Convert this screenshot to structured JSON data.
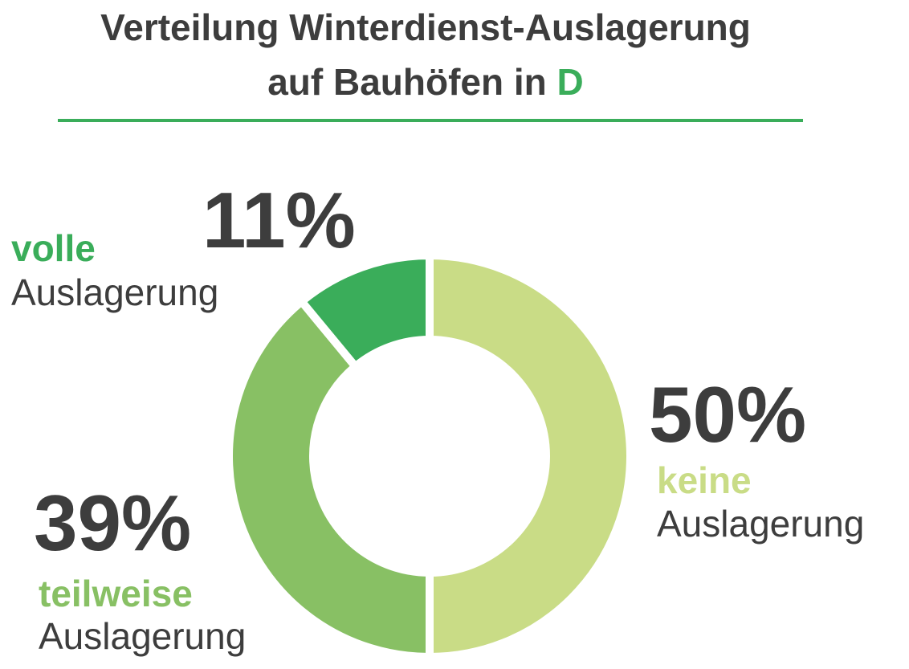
{
  "chart_data": {
    "type": "pie",
    "title": [
      "Verteilung Winterdienst-Auslagerung",
      "auf Bauhöfen in",
      "D"
    ],
    "categories": [
      [
        "keine",
        "Auslagerung"
      ],
      [
        "teilweise",
        "Auslagerung"
      ],
      [
        "volle",
        "Auslagerung"
      ]
    ],
    "values": [
      50,
      39,
      11
    ],
    "value_labels": [
      "50%",
      "39%",
      "11%"
    ],
    "colors": [
      "#c9dc86",
      "#88c064",
      "#3aad5a"
    ],
    "accent_color": "#3aad5a"
  }
}
